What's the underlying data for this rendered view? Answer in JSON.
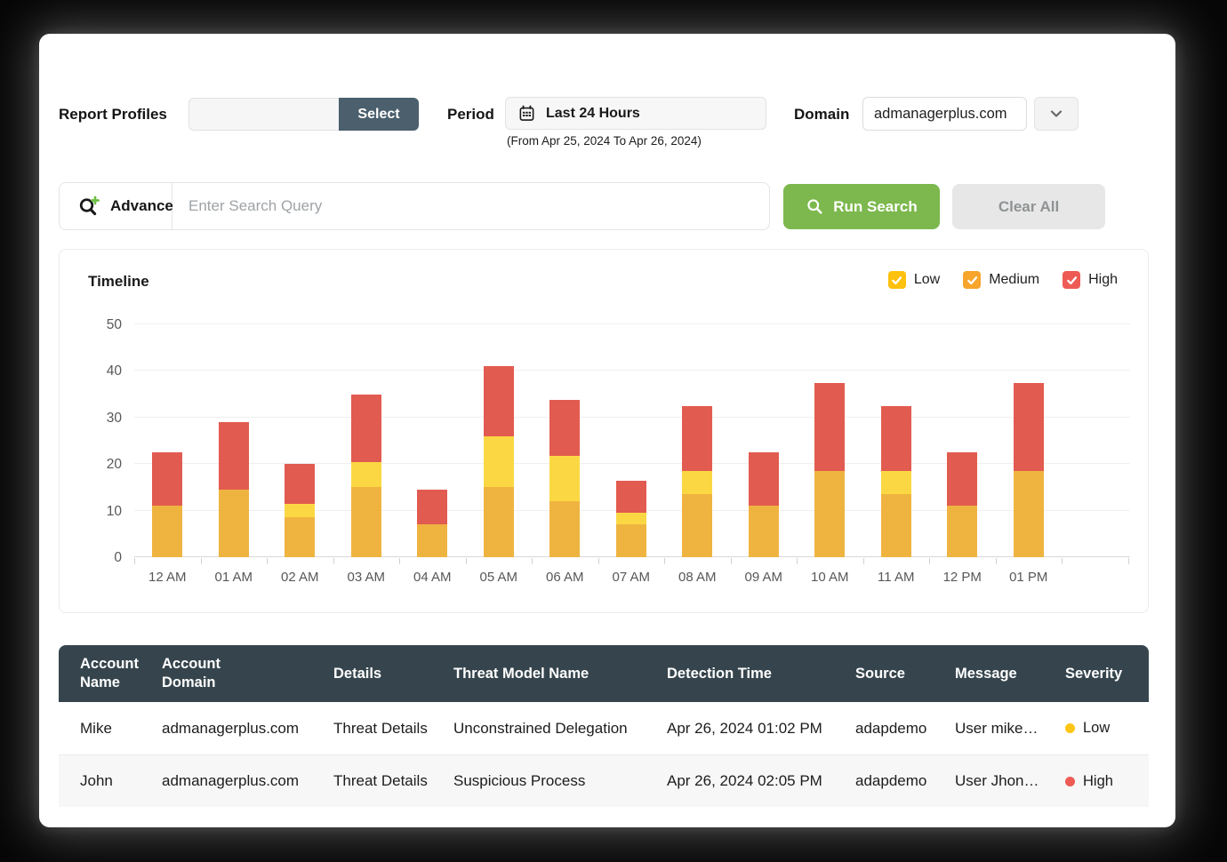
{
  "filters": {
    "report_profiles_label": "Report Profiles",
    "report_profiles_value": "",
    "select_button": "Select",
    "period_label": "Period",
    "period_value": "Last 24 Hours",
    "period_range": "(From Apr 25, 2024 To Apr 26, 2024)",
    "domain_label": "Domain",
    "domain_value": "admanagerplus.com"
  },
  "search": {
    "advance_label": "Advance",
    "placeholder": "Enter Search Query",
    "run_search_label": "Run Search",
    "clear_all_label": "Clear All"
  },
  "timeline": {
    "title": "Timeline",
    "legend": [
      {
        "label": "Low",
        "color": "#fec10d"
      },
      {
        "label": "Medium",
        "color": "#f7a52b"
      },
      {
        "label": "High",
        "color": "#ee5b55"
      }
    ]
  },
  "chart_data": {
    "type": "bar",
    "stacked": true,
    "title": "Timeline",
    "xlabel": "",
    "ylabel": "",
    "ylim": [
      0,
      50
    ],
    "yticks": [
      0,
      10,
      20,
      30,
      40,
      50
    ],
    "grid": true,
    "legend_position": "top-right",
    "categories": [
      "12 AM",
      "01 AM",
      "02 AM",
      "03 AM",
      "04 AM",
      "05 AM",
      "06 AM",
      "07 AM",
      "08 AM",
      "09 AM",
      "10 AM",
      "11 AM",
      "12 PM",
      "01 PM"
    ],
    "series": [
      {
        "name": "Low",
        "color": "#efb440",
        "values": [
          11,
          14.5,
          8.5,
          15,
          7,
          15,
          12,
          7,
          13.5,
          11,
          18.5,
          13.5,
          11,
          18.5
        ]
      },
      {
        "name": "Medium",
        "color": "#fbd843",
        "values": [
          0,
          0,
          3,
          5.5,
          0,
          11,
          9.7,
          2.5,
          5,
          0,
          0,
          5,
          0,
          0
        ]
      },
      {
        "name": "High",
        "color": "#e25b50",
        "values": [
          11.5,
          14.5,
          8.5,
          14.5,
          7.5,
          15,
          12,
          7,
          14,
          11.5,
          19,
          14,
          11.5,
          19
        ]
      }
    ]
  },
  "table": {
    "columns": [
      "Account Name",
      "Account Domain",
      "Details",
      "Threat Model Name",
      "Detection Time",
      "Source",
      "Message",
      "Severity"
    ],
    "rows": [
      {
        "account_name": "Mike",
        "account_domain": "admanagerplus.com",
        "details": "Threat Details",
        "threat_model": "Unconstrained Delegation",
        "detection_time": "Apr 26, 2024 01:02 PM",
        "source": "adapdemo",
        "message": "User mike…",
        "severity": "Low",
        "severity_color": "#ffc515"
      },
      {
        "account_name": "John",
        "account_domain": "admanagerplus.com",
        "details": "Threat Details",
        "threat_model": "Suspicious Process",
        "detection_time": "Apr 26, 2024 02:05 PM",
        "source": "adapdemo",
        "message": "User Jhon…",
        "severity": "High",
        "severity_color": "#ee5b55"
      }
    ]
  }
}
